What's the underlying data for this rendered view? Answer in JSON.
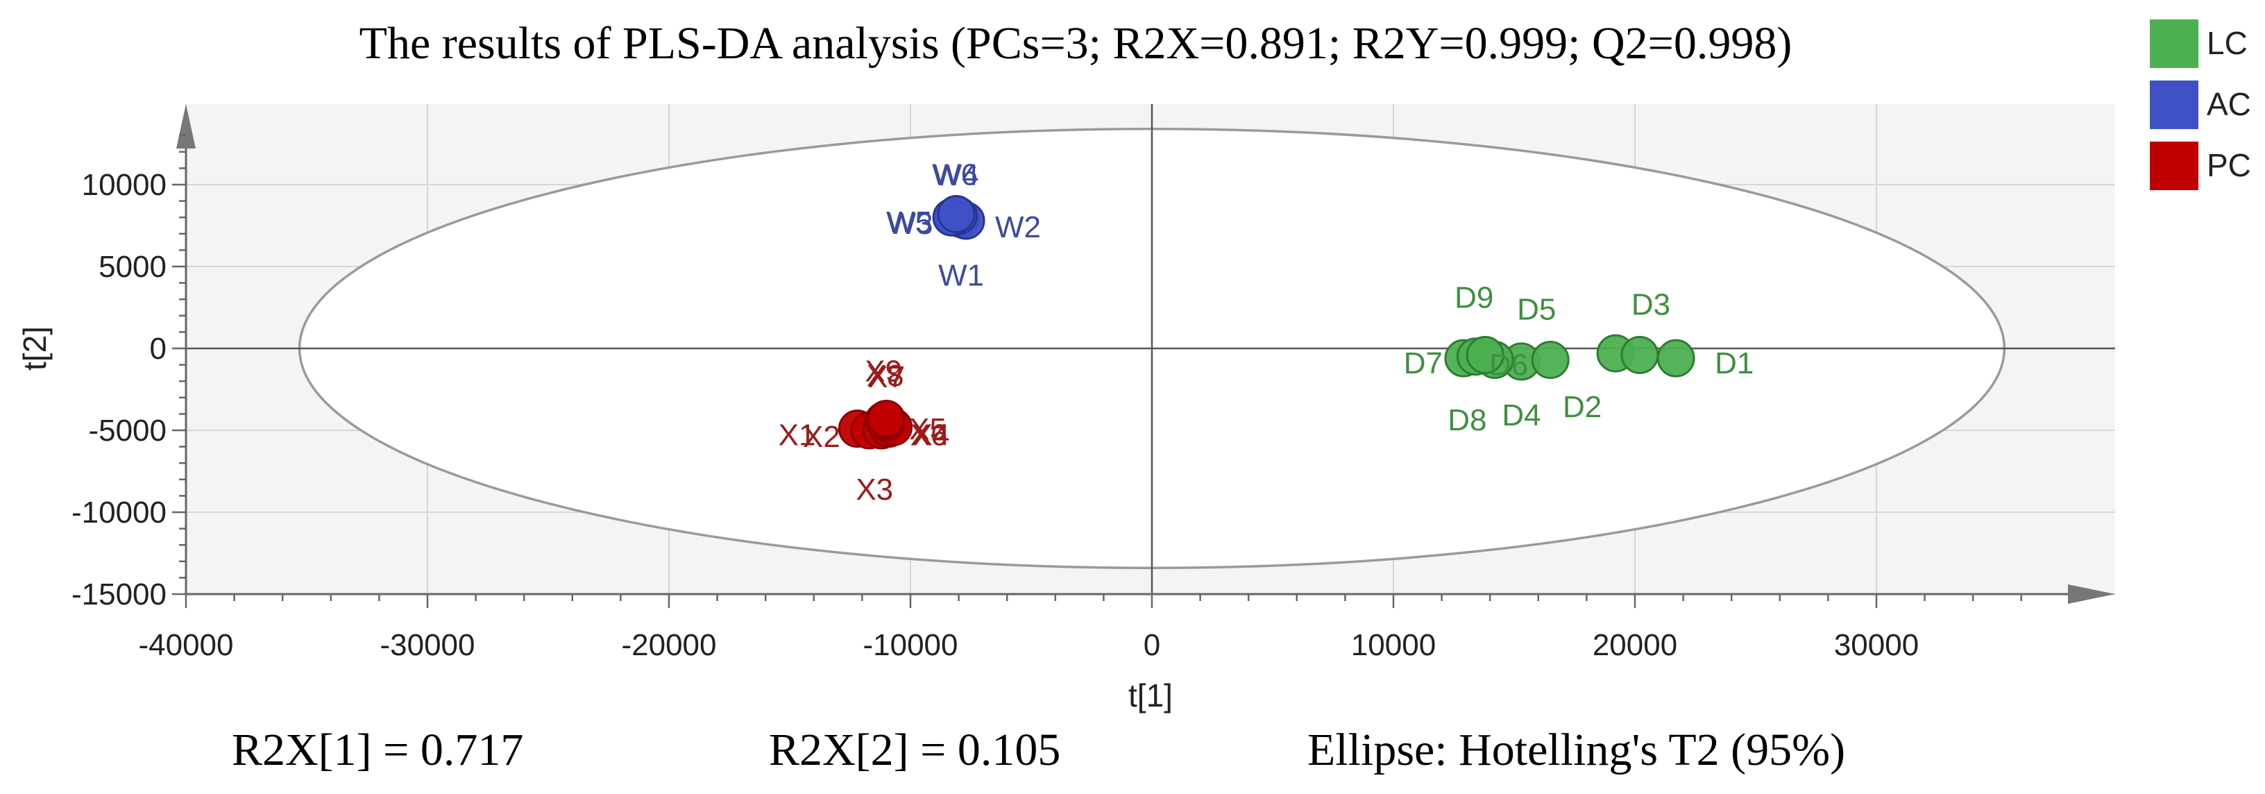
{
  "chart_data": {
    "type": "scatter",
    "title": "The results of PLS-DA analysis (PCs=3; R2X=0.891; R2Y=0.999; Q2=0.998)",
    "xlabel": "t[1]",
    "ylabel": "t[2]",
    "xlim": [
      -40000,
      40000
    ],
    "ylim": [
      -15000,
      15000
    ],
    "xticks": [
      -40000,
      -30000,
      -20000,
      -10000,
      0,
      10000,
      20000,
      30000
    ],
    "yticks": [
      -15000,
      -10000,
      -5000,
      0,
      5000,
      10000
    ],
    "grid": true,
    "legend_position": "top-right",
    "ellipse": {
      "label": "Ellipse: Hotelling's T2 (95%)",
      "center": [
        0,
        0
      ],
      "semi_x": 35300,
      "semi_y": 13400
    },
    "footer": {
      "r2x1": "R2X[1] = 0.717",
      "r2x2": "R2X[2] = 0.105",
      "ellipse_note": "Ellipse: Hotelling's T2 (95%)"
    },
    "series": [
      {
        "name": "LC",
        "color": "#4caf50",
        "stroke": "#2e7d32",
        "label_color": "#3f8f3f",
        "points": [
          {
            "label": "D1",
            "x": 21700,
            "y": -600
          },
          {
            "label": "D2",
            "x": 19200,
            "y": -300
          },
          {
            "label": "D3",
            "x": 20200,
            "y": -400
          },
          {
            "label": "D4",
            "x": 15300,
            "y": -800
          },
          {
            "label": "D5",
            "x": 16500,
            "y": -700
          },
          {
            "label": "D6",
            "x": 14200,
            "y": -700
          },
          {
            "label": "D7",
            "x": 12900,
            "y": -600
          },
          {
            "label": "D8",
            "x": 13400,
            "y": -500
          },
          {
            "label": "D9",
            "x": 13800,
            "y": -400
          }
        ]
      },
      {
        "name": "AC",
        "color": "#3f51c5",
        "stroke": "#283593",
        "label_color": "#3c4a9e",
        "points": [
          {
            "label": "W1",
            "x": -7900,
            "y": 7900
          },
          {
            "label": "W2",
            "x": -7700,
            "y": 7800
          },
          {
            "label": "W3",
            "x": -8200,
            "y": 8000
          },
          {
            "label": "W4",
            "x": -8000,
            "y": 8100
          },
          {
            "label": "W5",
            "x": -8300,
            "y": 8000
          },
          {
            "label": "W6",
            "x": -8100,
            "y": 8200
          }
        ]
      },
      {
        "name": "PC",
        "color": "#c00000",
        "stroke": "#8b0000",
        "label_color": "#9b1b1b",
        "points": [
          {
            "label": "X1",
            "x": -12200,
            "y": -4900
          },
          {
            "label": "X2",
            "x": -11700,
            "y": -5000
          },
          {
            "label": "X3",
            "x": -11200,
            "y": -5000
          },
          {
            "label": "X4",
            "x": -10900,
            "y": -4900
          },
          {
            "label": "X5",
            "x": -10800,
            "y": -4700
          },
          {
            "label": "X6",
            "x": -10700,
            "y": -4800
          },
          {
            "label": "X7",
            "x": -11000,
            "y": -4500
          },
          {
            "label": "X8",
            "x": -11100,
            "y": -4400
          },
          {
            "label": "X9",
            "x": -11000,
            "y": -4300
          }
        ]
      }
    ]
  }
}
